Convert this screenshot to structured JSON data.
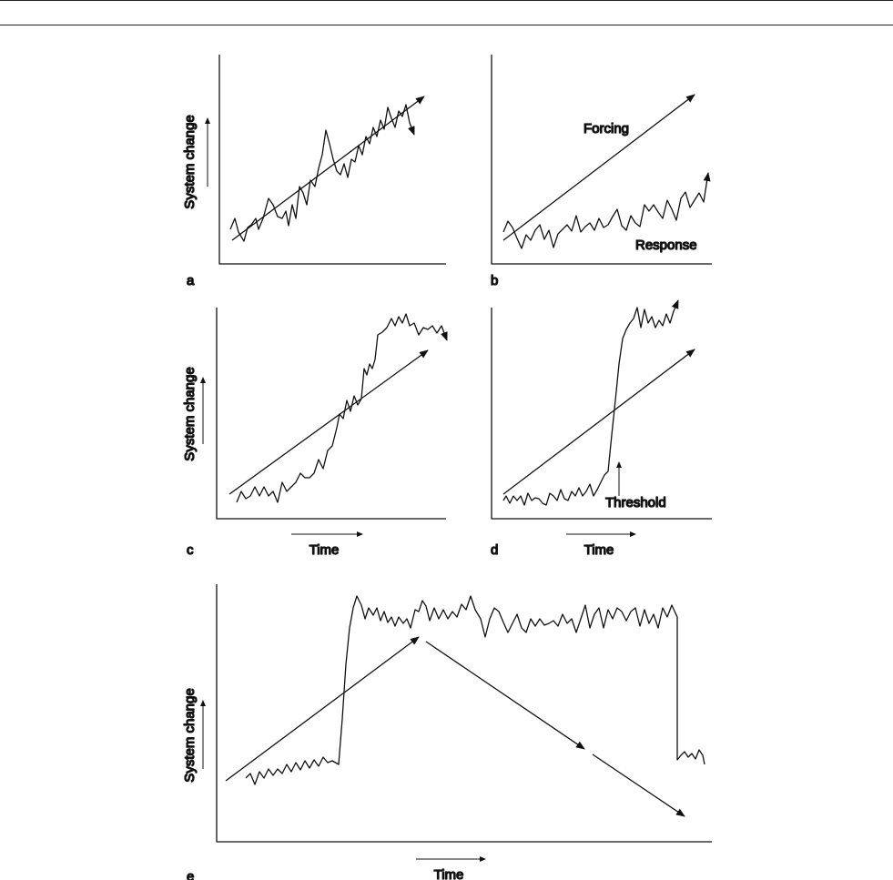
{
  "panels": [
    {
      "letter": "a",
      "ylabel": "System change",
      "xlabel": "",
      "labels": []
    },
    {
      "letter": "b",
      "ylabel": "",
      "xlabel": "",
      "labels": [
        "Forcing",
        "Response"
      ]
    },
    {
      "letter": "c",
      "ylabel": "System change",
      "xlabel": "Time",
      "labels": []
    },
    {
      "letter": "d",
      "ylabel": "",
      "xlabel": "Time",
      "labels": [
        "Threshold"
      ]
    },
    {
      "letter": "e",
      "ylabel": "System change",
      "xlabel": "Time",
      "labels": []
    }
  ],
  "colors": {
    "ink": "#111111",
    "background": "#ffffff"
  }
}
